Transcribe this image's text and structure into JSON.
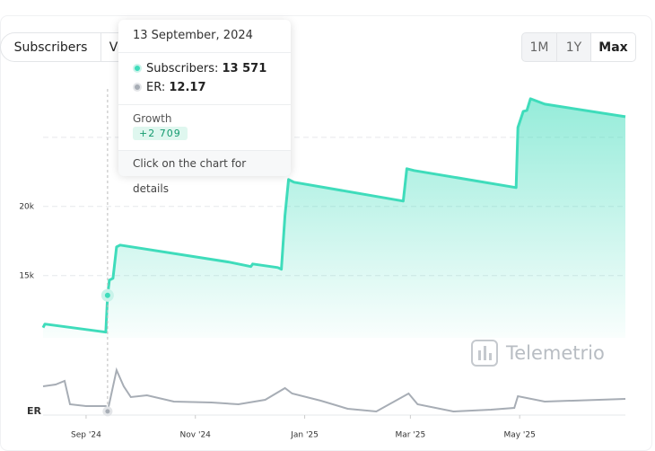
{
  "tabs": [
    "Subscribers",
    "Views"
  ],
  "ranges": [
    "1M",
    "1Y",
    "Max"
  ],
  "watermark": "Telemetrio",
  "tooltip": {
    "date": "13 September, 2024",
    "subscribers_label": "Subscribers:",
    "subscribers_value": "13 571",
    "er_label": "ER:",
    "er_value": "12.17",
    "growth_label": "Growth",
    "growth_value": "+2 709",
    "hint": "Click on the chart for details"
  },
  "chart_data": {
    "type": "area",
    "xlim": [
      "2024-08-08",
      "2025-06-29"
    ],
    "xticks": [
      {
        "value": "2024-09-01",
        "label": "Sep '24"
      },
      {
        "value": "2024-11-01",
        "label": "Nov '24"
      },
      {
        "value": "2025-01-01",
        "label": "Jan '25"
      },
      {
        "value": "2025-03-01",
        "label": "Mar '25"
      },
      {
        "value": "2025-05-01",
        "label": "May '25"
      }
    ],
    "ylim": [
      10500,
      28500
    ],
    "yticks": [
      {
        "value": 15000,
        "label": "15k"
      },
      {
        "value": 20000,
        "label": "20k"
      }
    ],
    "ygrid": [
      15000,
      20000,
      25000
    ],
    "series": [
      {
        "name": "Subscribers",
        "color": "#3fdcbb",
        "x": [
          "2024-08-08",
          "2024-08-09",
          "2024-09-12",
          "2024-09-13",
          "2024-09-14",
          "2024-09-16",
          "2024-09-18",
          "2024-09-20",
          "2024-11-20",
          "2024-12-02",
          "2024-12-03",
          "2024-12-17",
          "2024-12-19",
          "2024-12-21",
          "2024-12-23",
          "2024-12-26",
          "2025-02-25",
          "2025-02-27",
          "2025-03-03",
          "2025-04-29",
          "2025-04-30",
          "2025-05-03",
          "2025-05-05",
          "2025-05-07",
          "2025-05-15",
          "2025-06-29"
        ],
        "values": [
          11234,
          11493,
          10909,
          13571,
          14675,
          14805,
          17078,
          17208,
          15974,
          15650,
          15844,
          15584,
          15455,
          19351,
          21949,
          21754,
          20390,
          22728,
          22598,
          21364,
          25715,
          26884,
          26950,
          27793,
          27403,
          26494
        ]
      }
    ],
    "er": {
      "name": "ER",
      "color": "#a7adb5",
      "ylim": [
        11.5,
        20
      ],
      "x": [
        "2024-08-08",
        "2024-08-15",
        "2024-08-20",
        "2024-08-23",
        "2024-09-01",
        "2024-09-12",
        "2024-09-13",
        "2024-09-18",
        "2024-09-22",
        "2024-09-26",
        "2024-10-05",
        "2024-10-20",
        "2024-11-10",
        "2024-11-25",
        "2024-12-10",
        "2024-12-21",
        "2024-12-25",
        "2025-01-10",
        "2025-01-25",
        "2025-02-10",
        "2025-02-28",
        "2025-03-05",
        "2025-03-25",
        "2025-04-15",
        "2025-04-28",
        "2025-04-30",
        "2025-05-15",
        "2025-06-29"
      ],
      "values": [
        16.73,
        17.06,
        17.71,
        13.46,
        13.13,
        13.13,
        12.17,
        19.67,
        16.73,
        14.77,
        15.1,
        13.95,
        13.79,
        13.46,
        14.28,
        16.4,
        15.42,
        14.12,
        12.64,
        12.15,
        15.42,
        13.46,
        12.15,
        12.48,
        12.81,
        14.93,
        13.95,
        14.44
      ]
    }
  }
}
